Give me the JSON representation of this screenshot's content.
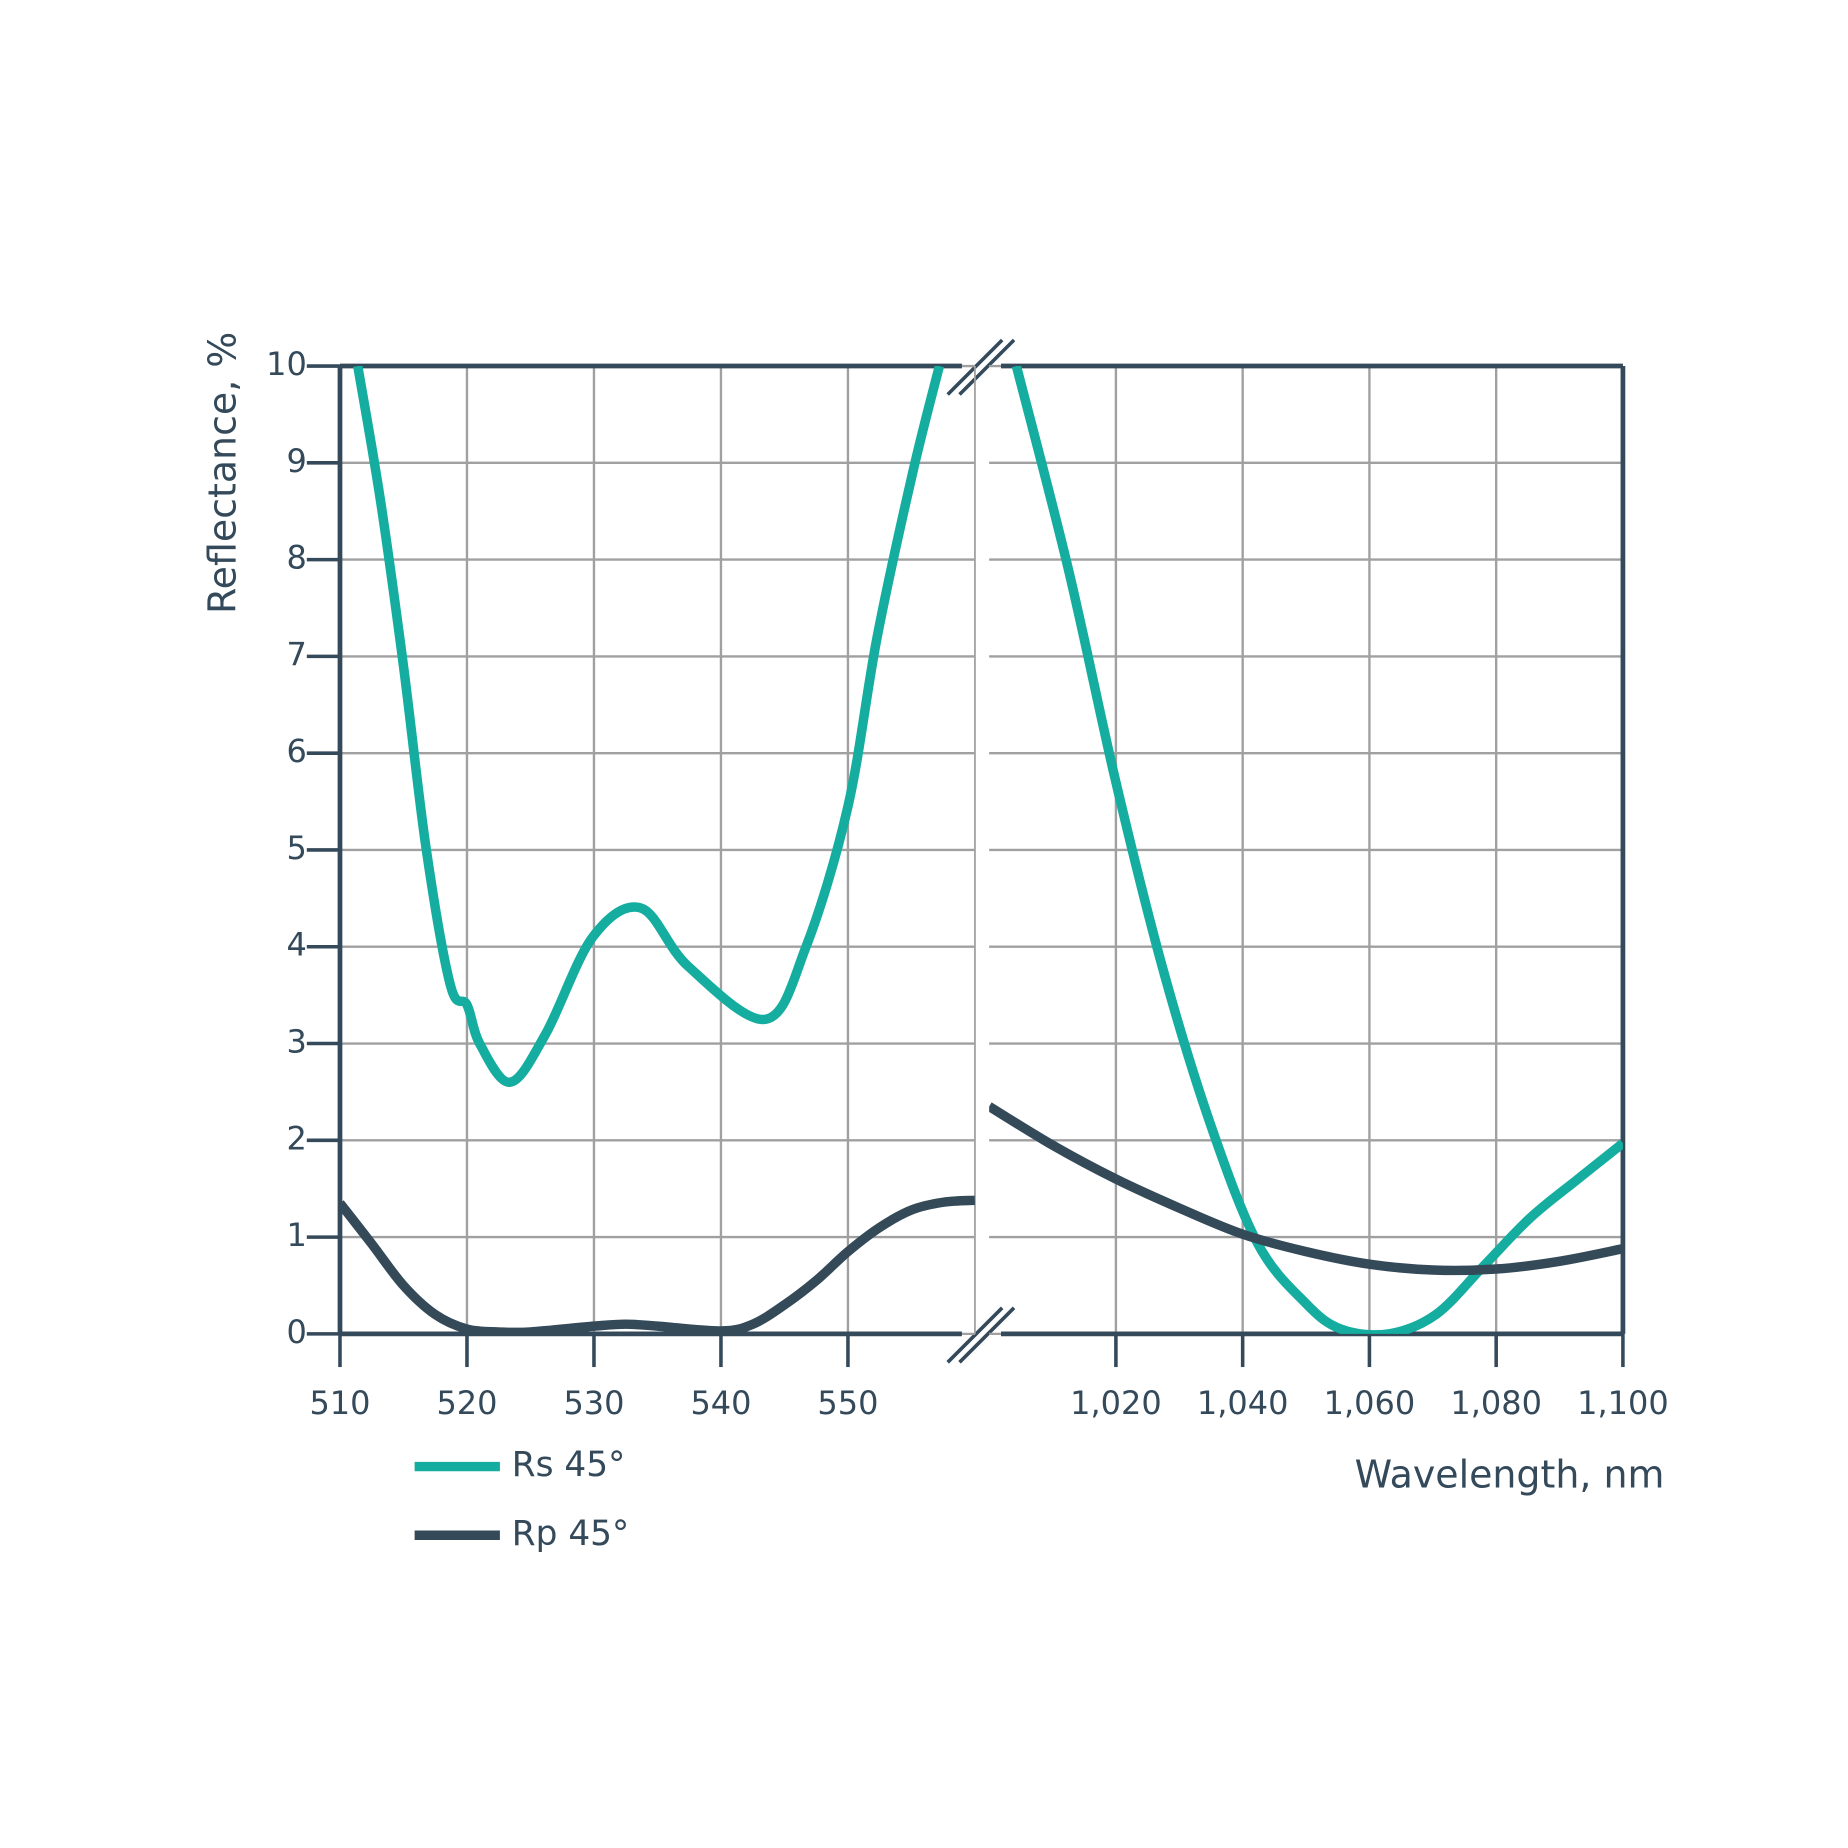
{
  "chart_data": {
    "type": "line",
    "ylabel": "Reflectance, %",
    "xlabel": "Wavelength, nm",
    "xlim": [
      510,
      1100
    ],
    "xbreak": [
      560,
      1000
    ],
    "ylim": [
      0,
      10
    ],
    "yticks": [
      0,
      1,
      2,
      3,
      4,
      5,
      6,
      7,
      8,
      9,
      10
    ],
    "xticks": [
      510,
      520,
      530,
      540,
      550,
      {
        "value": 1020,
        "label": "1,020"
      },
      {
        "value": 1040,
        "label": "1,040"
      },
      {
        "value": 1060,
        "label": "1,060"
      },
      {
        "value": 1080,
        "label": "1,080"
      },
      {
        "value": 1100,
        "label": "1,100"
      }
    ],
    "grid": true,
    "series": [
      {
        "name": "Rs 45°",
        "color": "#14ada0",
        "x": [
          511.4,
          513.2,
          515,
          516.8,
          518.7,
          520,
          521,
          523.4,
          526.2,
          529.9,
          533.7,
          537.4,
          543.5,
          546.7,
          550,
          552.3,
          555.1,
          557.2,
          1004.3,
          1012.5,
          1020,
          1027.5,
          1035,
          1042.4,
          1049.9,
          1055.5,
          1063,
          1070.5,
          1078,
          1085.4,
          1092.9,
          1100
        ],
        "values": [
          10,
          8.6,
          6.9,
          5.0,
          3.6,
          3.4,
          3.0,
          2.6,
          3.1,
          4.1,
          4.4,
          3.8,
          3.25,
          4.0,
          5.45,
          7.2,
          8.9,
          10,
          10,
          7.9,
          5.7,
          3.75,
          2.15,
          0.93,
          0.32,
          0.05,
          0,
          0.2,
          0.7,
          1.2,
          1.6,
          1.97
        ]
      },
      {
        "name": "Rp 45°",
        "color": "#344a59",
        "x": [
          510,
          512.5,
          515,
          517.5,
          520,
          522.5,
          525,
          530,
          532.5,
          535,
          540,
          542.5,
          545,
          547.5,
          550,
          552.5,
          555,
          557.5,
          560,
          1000,
          1010,
          1020,
          1030,
          1040,
          1050,
          1060,
          1070,
          1080,
          1090,
          1100
        ],
        "values": [
          1.35,
          0.93,
          0.5,
          0.2,
          0.05,
          0.02,
          0.02,
          0.08,
          0.1,
          0.08,
          0.03,
          0.1,
          0.3,
          0.55,
          0.85,
          1.1,
          1.28,
          1.36,
          1.38,
          2.35,
          1.95,
          1.6,
          1.3,
          1.03,
          0.85,
          0.72,
          0.66,
          0.67,
          0.75,
          0.88
        ]
      }
    ]
  }
}
